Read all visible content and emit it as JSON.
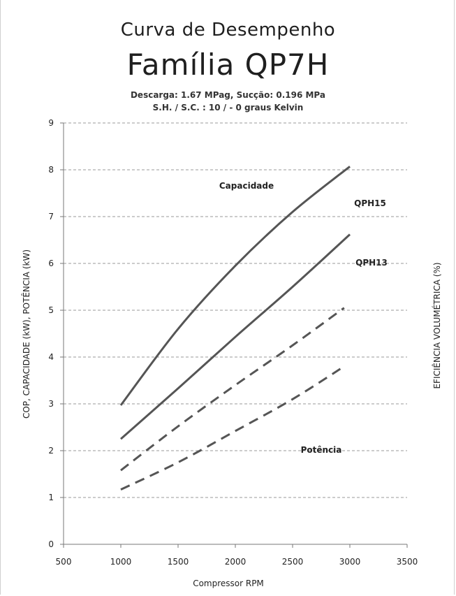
{
  "header": {
    "title": "Curva de Desempenho",
    "subtitle": "Família QP7H",
    "conditions_line1": "Descarga: 1.67 MPag, Sucção: 0.196 MPa",
    "conditions_line2": "S.H. / S.C. : 10 / - 0 graus Kelvin"
  },
  "chart_data": {
    "type": "line",
    "xlabel": "Compressor RPM",
    "ylabel": "COP, CAPACIDADE (kW), POTÊNCIA (kW)",
    "ylabel_right": "EFICIÊNCIA VOLUMÉTRICA (%)",
    "xlim": [
      500,
      3500
    ],
    "ylim": [
      0,
      9
    ],
    "x_ticks": [
      "500",
      "1000",
      "1500",
      "2000",
      "2500",
      "3000",
      "3500"
    ],
    "y_ticks": [
      "0",
      "1",
      "2",
      "3",
      "4",
      "5",
      "6",
      "7",
      "8",
      "9"
    ],
    "grid": "horizontal dashed",
    "annotations": {
      "capacidade": "Capacidade",
      "qph15": "QPH15",
      "qph13": "QPH13",
      "potencia": "Potência"
    },
    "series": [
      {
        "style": "solid",
        "color": "#555555",
        "points": [
          [
            1000,
            2.97
          ],
          [
            1500,
            4.6
          ],
          [
            2000,
            5.95
          ],
          [
            2500,
            7.1
          ],
          [
            3000,
            8.07
          ]
        ]
      },
      {
        "style": "solid",
        "color": "#555555",
        "points": [
          [
            1000,
            2.25
          ],
          [
            1500,
            3.33
          ],
          [
            2000,
            4.43
          ],
          [
            2500,
            5.5
          ],
          [
            3000,
            6.62
          ]
        ]
      },
      {
        "style": "dashed",
        "color": "#555555",
        "points": [
          [
            1000,
            1.58
          ],
          [
            1500,
            2.52
          ],
          [
            2000,
            3.4
          ],
          [
            2500,
            4.25
          ],
          [
            2950,
            5.05
          ]
        ]
      },
      {
        "style": "dashed",
        "color": "#555555",
        "points": [
          [
            1000,
            1.17
          ],
          [
            1500,
            1.75
          ],
          [
            2000,
            2.42
          ],
          [
            2500,
            3.1
          ],
          [
            2950,
            3.8
          ]
        ]
      }
    ]
  }
}
